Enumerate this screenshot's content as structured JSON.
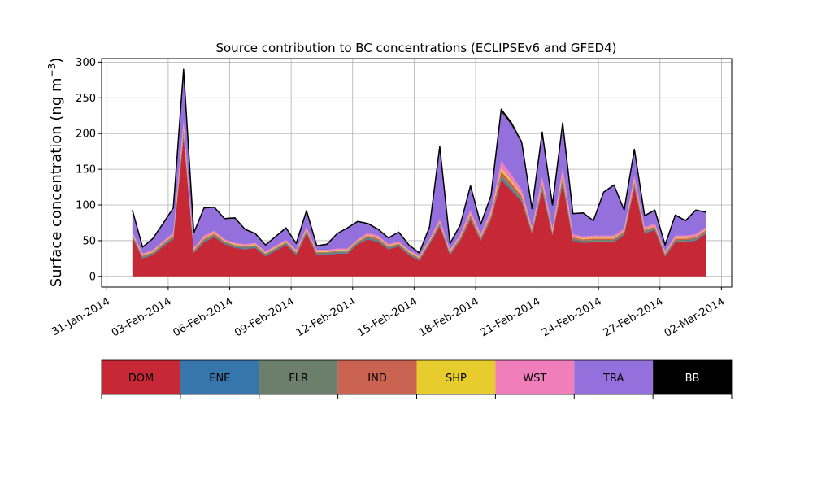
{
  "chart_data": {
    "type": "area",
    "stacked": true,
    "title": "Source contribution to BC concentrations (ECLIPSEv6 and GFED4)",
    "ylabel": "Surface concentration (ng m⁻³)",
    "ylabel_main": "Surface concentration (ng m",
    "ylabel_sup": "−3",
    "ylabel_close": ")",
    "xlabel": "",
    "ylim": [
      -15,
      305
    ],
    "xlim": [
      "2014-01-30T18:00",
      "2014-03-02T12:00"
    ],
    "x_ticks": [
      "31-Jan-2014",
      "03-Feb-2014",
      "06-Feb-2014",
      "09-Feb-2014",
      "12-Feb-2014",
      "15-Feb-2014",
      "18-Feb-2014",
      "21-Feb-2014",
      "24-Feb-2014",
      "27-Feb-2014",
      "02-Mar-2014"
    ],
    "y_ticks": [
      0,
      50,
      100,
      150,
      200,
      250,
      300
    ],
    "grid": true,
    "x_start": "2014-02-01T06:00",
    "x_step_hours": 12,
    "x": [
      "2014-02-01T06:00",
      "2014-02-01T18:00",
      "2014-02-02T06:00",
      "2014-02-02T18:00",
      "2014-02-03T06:00",
      "2014-02-03T18:00",
      "2014-02-04T06:00",
      "2014-02-04T18:00",
      "2014-02-05T06:00",
      "2014-02-05T18:00",
      "2014-02-06T06:00",
      "2014-02-06T18:00",
      "2014-02-07T06:00",
      "2014-02-07T18:00",
      "2014-02-08T06:00",
      "2014-02-08T18:00",
      "2014-02-09T06:00",
      "2014-02-09T18:00",
      "2014-02-10T06:00",
      "2014-02-10T18:00",
      "2014-02-11T06:00",
      "2014-02-11T18:00",
      "2014-02-12T06:00",
      "2014-02-12T18:00",
      "2014-02-13T06:00",
      "2014-02-13T18:00",
      "2014-02-14T06:00",
      "2014-02-14T18:00",
      "2014-02-15T06:00",
      "2014-02-15T18:00",
      "2014-02-16T06:00",
      "2014-02-16T18:00",
      "2014-02-17T06:00",
      "2014-02-17T18:00",
      "2014-02-18T06:00",
      "2014-02-18T18:00",
      "2014-02-19T06:00",
      "2014-02-19T18:00",
      "2014-02-20T06:00",
      "2014-02-20T18:00",
      "2014-02-21T06:00",
      "2014-02-21T18:00",
      "2014-02-22T06:00",
      "2014-02-22T18:00",
      "2014-02-23T06:00",
      "2014-02-23T18:00",
      "2014-02-24T06:00",
      "2014-02-24T18:00",
      "2014-02-25T06:00",
      "2014-02-25T18:00",
      "2014-02-26T06:00",
      "2014-02-26T18:00",
      "2014-02-27T06:00",
      "2014-02-27T18:00",
      "2014-02-28T06:00",
      "2014-02-28T18:00",
      "2014-03-01T06:00"
    ],
    "series": [
      {
        "name": "DOM",
        "color": "#c62836",
        "values": [
          55,
          25,
          30,
          42,
          52,
          195,
          33,
          48,
          55,
          45,
          40,
          38,
          40,
          28,
          36,
          44,
          30,
          60,
          30,
          30,
          32,
          32,
          45,
          52,
          48,
          38,
          42,
          30,
          22,
          45,
          70,
          30,
          50,
          80,
          50,
          80,
          135,
          120,
          105,
          60,
          120,
          58,
          130,
          50,
          47,
          48,
          48,
          48,
          58,
          125,
          60,
          65,
          28,
          48,
          48,
          50,
          60
        ]
      },
      {
        "name": "ENE",
        "color": "#3775ad",
        "values": [
          1,
          1,
          1,
          1,
          1,
          2,
          1,
          1,
          1,
          1,
          1,
          1,
          1,
          1,
          1,
          1,
          1,
          1,
          1,
          1,
          1,
          1,
          1,
          1,
          1,
          1,
          1,
          1,
          1,
          1,
          1,
          1,
          1,
          1,
          1,
          1,
          2,
          2,
          1,
          1,
          2,
          1,
          2,
          1,
          1,
          1,
          1,
          1,
          1,
          1,
          1,
          1,
          1,
          1,
          1,
          1,
          1
        ]
      },
      {
        "name": "FLR",
        "color": "#6c7f6c",
        "values": [
          2,
          2,
          2,
          2,
          2,
          4,
          2,
          2,
          2,
          2,
          2,
          2,
          2,
          2,
          2,
          2,
          2,
          2,
          2,
          2,
          2,
          2,
          2,
          2,
          2,
          2,
          2,
          2,
          2,
          2,
          2,
          2,
          2,
          2,
          2,
          2,
          4,
          4,
          3,
          2,
          4,
          2,
          4,
          2,
          2,
          2,
          2,
          2,
          2,
          3,
          2,
          2,
          2,
          2,
          2,
          2,
          2
        ]
      },
      {
        "name": "IND",
        "color": "#cb6352",
        "values": [
          1,
          1,
          1,
          1,
          2,
          6,
          1,
          2,
          2,
          1,
          1,
          1,
          1,
          1,
          1,
          1,
          1,
          2,
          1,
          1,
          1,
          1,
          1,
          2,
          2,
          1,
          1,
          1,
          1,
          1,
          2,
          1,
          2,
          3,
          2,
          3,
          6,
          5,
          4,
          2,
          4,
          2,
          5,
          2,
          2,
          2,
          2,
          2,
          2,
          4,
          2,
          2,
          1,
          2,
          2,
          2,
          2
        ]
      },
      {
        "name": "SHP",
        "color": "#e6cc2c",
        "values": [
          1,
          1,
          1,
          1,
          1,
          3,
          1,
          1,
          1,
          1,
          1,
          1,
          1,
          1,
          1,
          1,
          1,
          1,
          1,
          1,
          1,
          1,
          1,
          1,
          1,
          1,
          1,
          1,
          1,
          1,
          1,
          1,
          1,
          2,
          1,
          2,
          4,
          3,
          2,
          1,
          2,
          1,
          3,
          1,
          1,
          1,
          1,
          1,
          1,
          2,
          1,
          1,
          1,
          1,
          1,
          1,
          1
        ]
      },
      {
        "name": "WST",
        "color": "#f07ebb",
        "values": [
          2,
          2,
          2,
          2,
          3,
          8,
          2,
          3,
          3,
          2,
          2,
          2,
          2,
          2,
          2,
          2,
          2,
          3,
          2,
          2,
          2,
          2,
          2,
          3,
          3,
          2,
          2,
          2,
          2,
          2,
          4,
          2,
          3,
          5,
          3,
          5,
          10,
          8,
          6,
          3,
          7,
          3,
          8,
          3,
          3,
          3,
          3,
          3,
          3,
          6,
          3,
          3,
          2,
          3,
          3,
          3,
          3
        ]
      },
      {
        "name": "TRA",
        "color": "#9370db",
        "values": [
          30,
          8,
          15,
          24,
          34,
          70,
          20,
          38,
          32,
          28,
          34,
          20,
          12,
          8,
          12,
          16,
          8,
          22,
          5,
          7,
          20,
          28,
          24,
          12,
          8,
          8,
          12,
          6,
          3,
          16,
          100,
          8,
          12,
          32,
          13,
          18,
          70,
          70,
          65,
          25,
          60,
          32,
          60,
          28,
          32,
          20,
          60,
          70,
          25,
          35,
          15,
          18,
          8,
          28,
          20,
          33,
          20
        ]
      },
      {
        "name": "BB",
        "color": "#000000",
        "values": [
          1,
          1,
          1,
          1,
          1,
          2,
          1,
          1,
          1,
          1,
          1,
          1,
          1,
          1,
          1,
          1,
          1,
          1,
          1,
          1,
          1,
          1,
          1,
          1,
          1,
          1,
          1,
          1,
          1,
          1,
          2,
          1,
          1,
          2,
          1,
          2,
          3,
          3,
          2,
          1,
          3,
          1,
          3,
          1,
          1,
          1,
          1,
          1,
          1,
          2,
          1,
          1,
          1,
          1,
          1,
          1,
          1
        ]
      }
    ]
  },
  "legend_bar": {
    "labels": [
      "DOM",
      "ENE",
      "FLR",
      "IND",
      "SHP",
      "WST",
      "TRA",
      "BB"
    ],
    "colors": [
      "#c62836",
      "#3775ad",
      "#6c7f6c",
      "#cb6352",
      "#e6cc2c",
      "#f07ebb",
      "#9370db",
      "#000000"
    ],
    "text_colors": [
      "#000000",
      "#000000",
      "#000000",
      "#000000",
      "#000000",
      "#000000",
      "#000000",
      "#ffffff"
    ]
  }
}
